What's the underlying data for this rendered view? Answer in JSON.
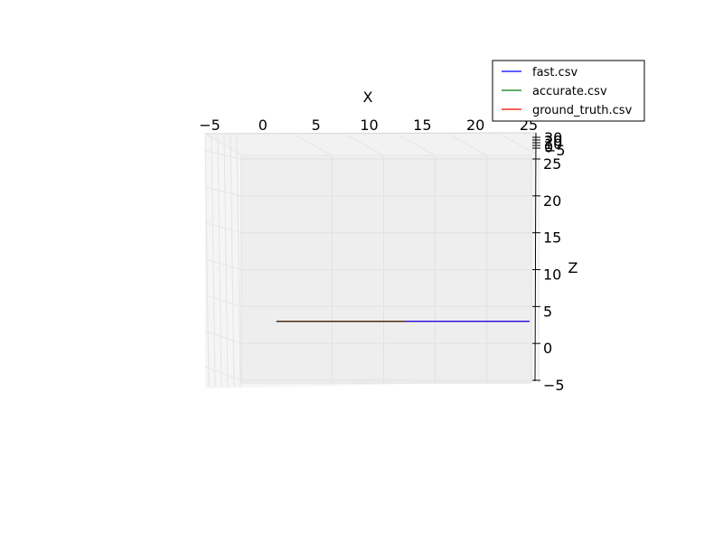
{
  "chart_data": {
    "type": "line",
    "projection": "3d",
    "xlabel": "X",
    "ylabel": "",
    "zlabel": "Z",
    "x_ticks": [
      -5,
      0,
      5,
      10,
      15,
      20,
      25
    ],
    "z_ticks": [
      -5,
      0,
      5,
      10,
      15,
      20,
      25
    ],
    "y_ticks_stacked": [
      "30",
      "20",
      "10",
      "0",
      "-5"
    ],
    "xlim": [
      -5,
      25
    ],
    "zlim": [
      -5,
      25
    ],
    "grid": true,
    "legend_position": "top-right",
    "series": [
      {
        "name": "fast.csv",
        "color": "#0000ff",
        "x": [
          0.5,
          25.0
        ],
        "z": [
          3.0,
          3.0
        ]
      },
      {
        "name": "accurate.csv",
        "color": "#008000",
        "x": [
          0.5,
          13.0
        ],
        "z": [
          3.0,
          3.0
        ]
      },
      {
        "name": "ground_truth.csv",
        "color": "#ff0000",
        "x": [
          0.5,
          25.0
        ],
        "z": [
          3.0,
          3.0
        ]
      }
    ]
  }
}
